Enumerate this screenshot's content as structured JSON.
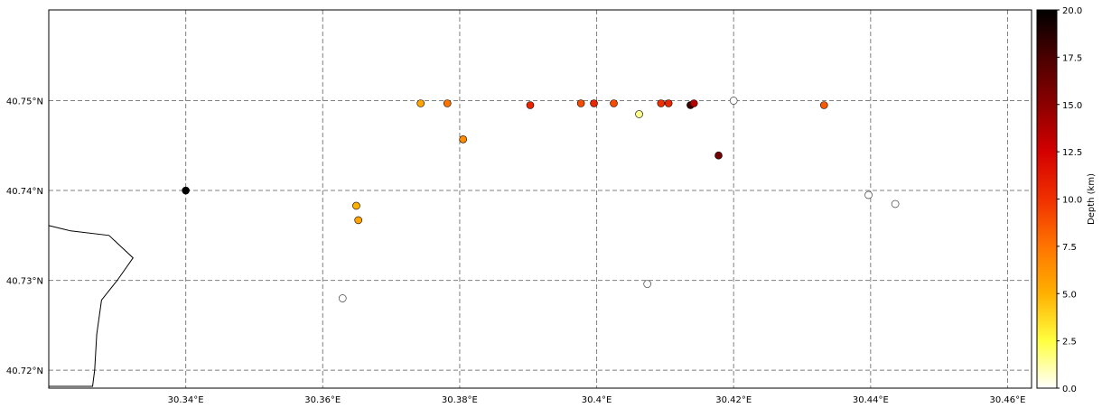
{
  "chart_data": {
    "type": "scatter",
    "title": "",
    "xlabel": "",
    "ylabel": "",
    "xlim": [
      30.32,
      30.4635
    ],
    "ylim": [
      40.718,
      40.7601
    ],
    "x_ticks": [
      {
        "value": 30.34,
        "label": "30.34°E"
      },
      {
        "value": 30.36,
        "label": "30.36°E"
      },
      {
        "value": 30.38,
        "label": "30.38°E"
      },
      {
        "value": 30.4,
        "label": "30.4°E"
      },
      {
        "value": 30.42,
        "label": "30.42°E"
      },
      {
        "value": 30.44,
        "label": "30.44°E"
      },
      {
        "value": 30.46,
        "label": "30.46°E"
      }
    ],
    "y_ticks": [
      {
        "value": 40.72,
        "label": "40.72°N"
      },
      {
        "value": 40.73,
        "label": "40.73°N"
      },
      {
        "value": 40.74,
        "label": "40.74°N"
      },
      {
        "value": 40.75,
        "label": "40.75°N"
      }
    ],
    "grid": true,
    "colorbar": {
      "label": "Depth (km)",
      "min": 0,
      "max": 20,
      "ticks": [
        "0.0",
        "2.5",
        "5.0",
        "7.5",
        "10.0",
        "12.5",
        "15.0",
        "17.5",
        "20.0"
      ],
      "colormap": "hot_r"
    },
    "coastline": [
      [
        30.32,
        40.7361
      ],
      [
        30.3232,
        40.7355
      ],
      [
        30.3288,
        40.735
      ],
      [
        30.3323,
        40.7325
      ],
      [
        30.33,
        40.73
      ],
      [
        30.3277,
        40.7278
      ],
      [
        30.327,
        40.724
      ],
      [
        30.3267,
        40.72
      ],
      [
        30.3264,
        40.7182
      ],
      [
        30.32,
        40.7182
      ]
    ],
    "points": [
      {
        "lon": 30.34,
        "lat": 40.74,
        "depth": 20.0
      },
      {
        "lon": 30.3743,
        "lat": 40.7497,
        "depth": 5.5
      },
      {
        "lon": 30.3782,
        "lat": 40.7497,
        "depth": 7.5
      },
      {
        "lon": 30.3805,
        "lat": 40.7457,
        "depth": 6.5
      },
      {
        "lon": 30.3649,
        "lat": 40.7383,
        "depth": 5.0
      },
      {
        "lon": 30.3652,
        "lat": 40.7367,
        "depth": 5.5
      },
      {
        "lon": 30.3903,
        "lat": 40.7495,
        "depth": 10.5
      },
      {
        "lon": 30.3977,
        "lat": 40.7497,
        "depth": 9.0
      },
      {
        "lon": 30.3996,
        "lat": 40.7497,
        "depth": 10.5
      },
      {
        "lon": 30.4025,
        "lat": 40.7497,
        "depth": 9.0
      },
      {
        "lon": 30.4062,
        "lat": 40.7485,
        "depth": 1.5
      },
      {
        "lon": 30.4094,
        "lat": 40.7497,
        "depth": 10.0
      },
      {
        "lon": 30.4105,
        "lat": 40.7497,
        "depth": 10.5
      },
      {
        "lon": 30.4137,
        "lat": 40.7495,
        "depth": 18.0
      },
      {
        "lon": 30.4142,
        "lat": 40.7497,
        "depth": 13.5
      },
      {
        "lon": 30.4178,
        "lat": 40.7439,
        "depth": 16.0
      },
      {
        "lon": 30.4332,
        "lat": 40.7495,
        "depth": 8.5
      },
      {
        "lon": 30.3629,
        "lat": 40.728,
        "depth": null
      },
      {
        "lon": 30.4074,
        "lat": 40.7296,
        "depth": null
      },
      {
        "lon": 30.42,
        "lat": 40.75,
        "depth": null
      },
      {
        "lon": 30.4397,
        "lat": 40.7395,
        "depth": null
      },
      {
        "lon": 30.4436,
        "lat": 40.7385,
        "depth": null
      }
    ]
  }
}
